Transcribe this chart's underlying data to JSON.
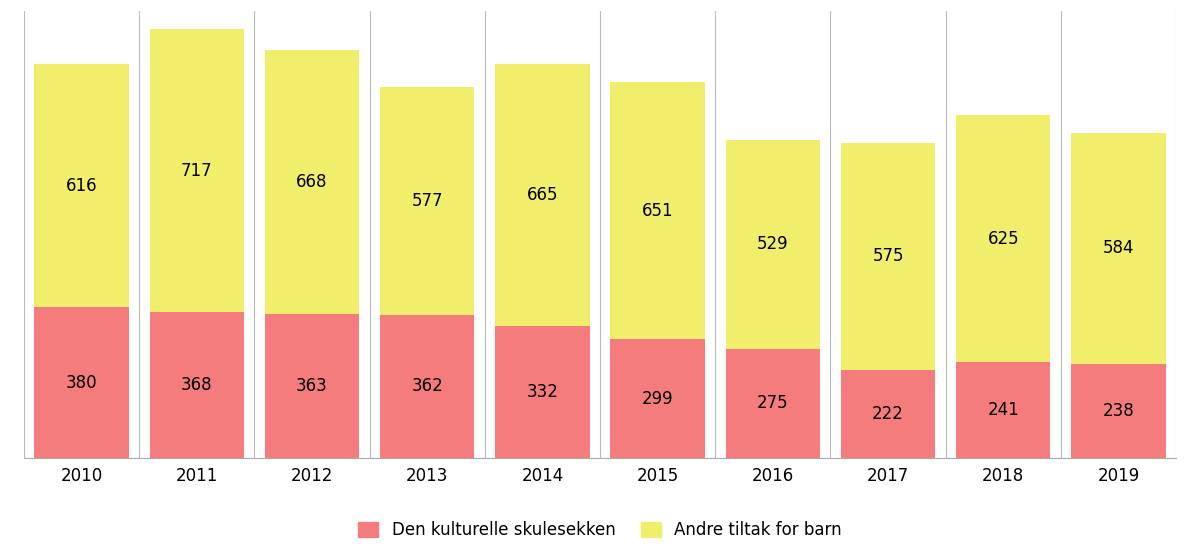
{
  "years": [
    "2010",
    "2011",
    "2012",
    "2013",
    "2014",
    "2015",
    "2016",
    "2017",
    "2018",
    "2019"
  ],
  "skulesekken": [
    380,
    368,
    363,
    362,
    332,
    299,
    275,
    222,
    241,
    238
  ],
  "andre_tiltak": [
    616,
    717,
    668,
    577,
    665,
    651,
    529,
    575,
    625,
    584
  ],
  "color_skulesekken": "#F47C7C",
  "color_andre_tiltak": "#F0EE6A",
  "label_skulesekken": "Den kulturelle skulesekken",
  "label_andre_tiltak": "Andre tiltak for barn",
  "bar_width": 0.82,
  "ylim": [
    0,
    1130
  ],
  "text_fontsize": 12,
  "tick_fontsize": 12,
  "legend_fontsize": 12,
  "background_color": "#ffffff",
  "grid_color": "#bbbbbb",
  "spine_color": "#aaaaaa"
}
